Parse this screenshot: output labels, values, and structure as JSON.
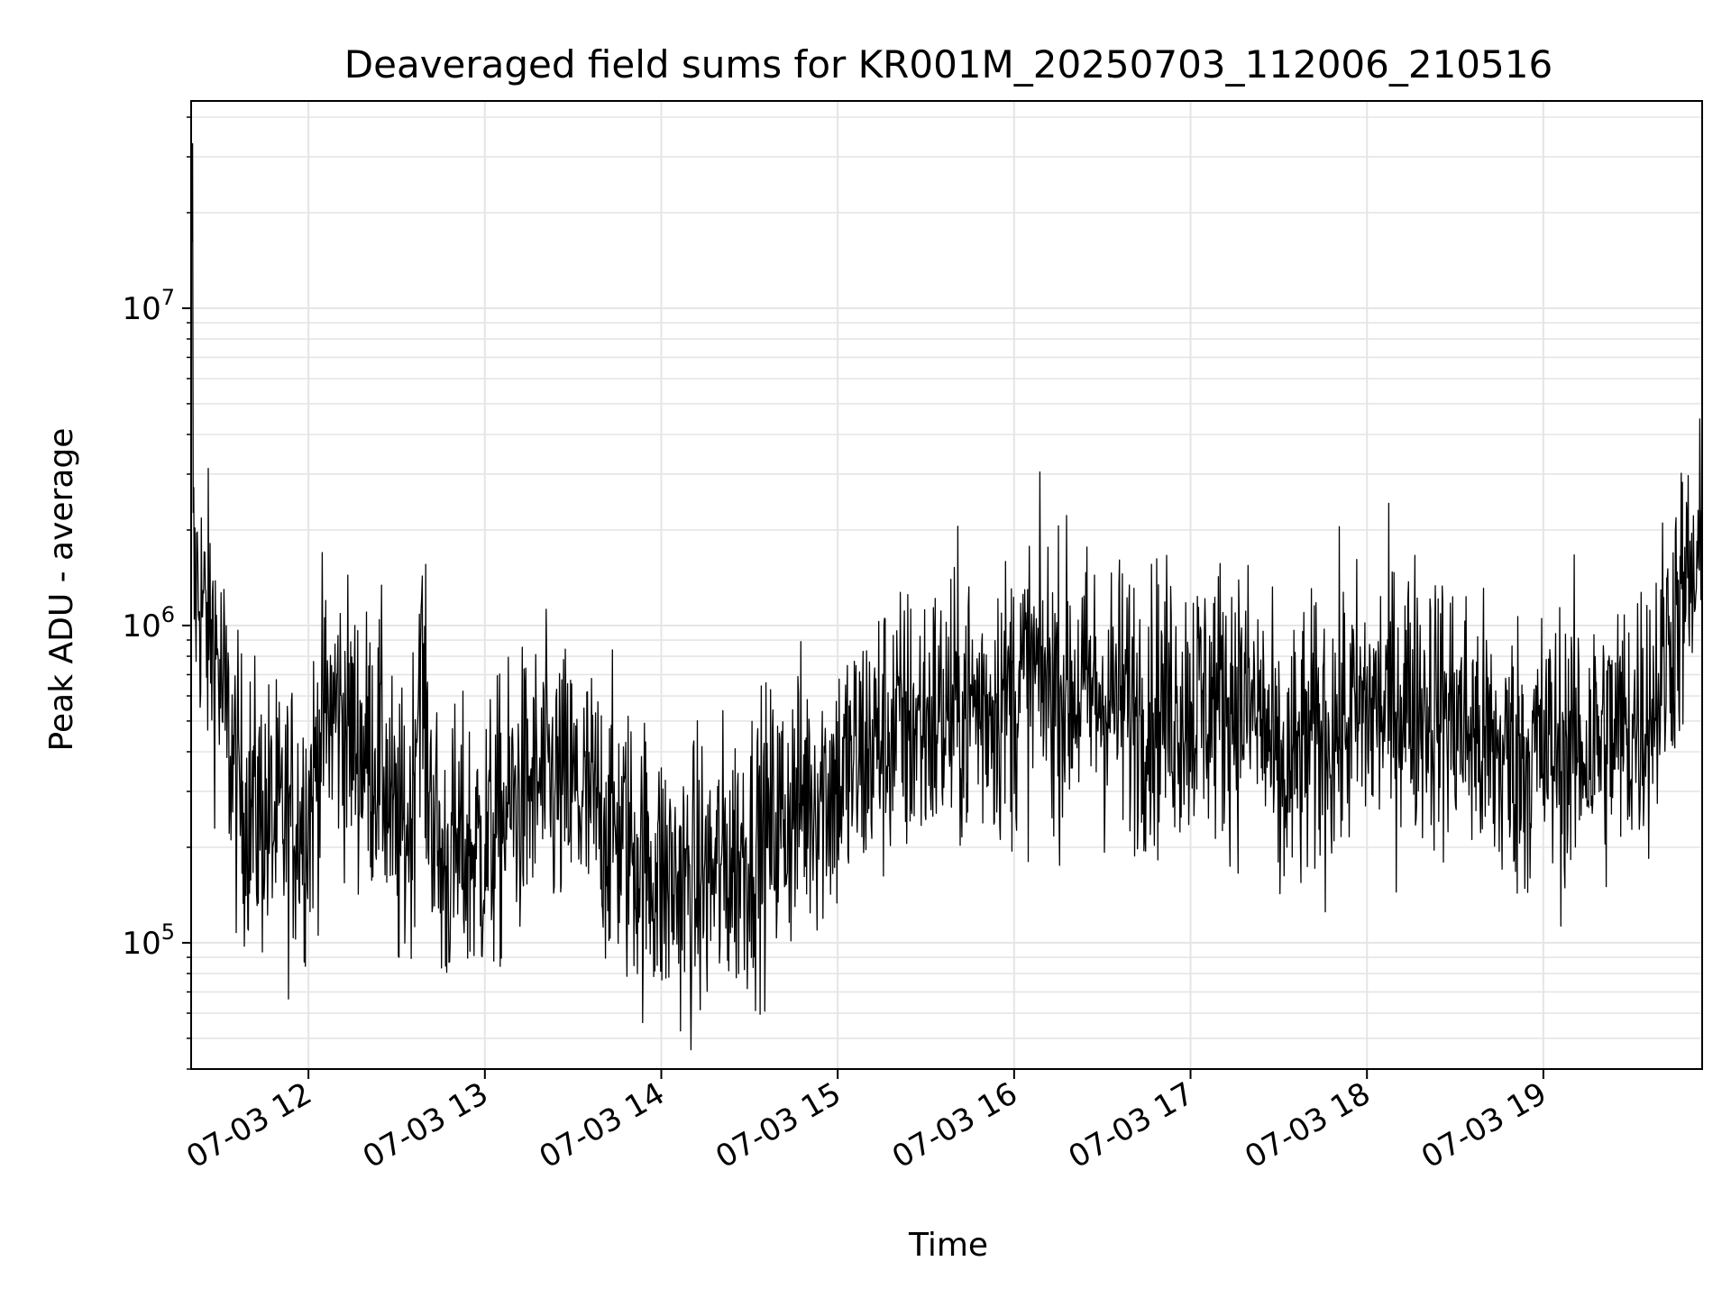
{
  "chart_data": {
    "type": "line",
    "title": "Deaveraged field sums for KR001M_20250703_112006_210516",
    "xlabel": "Time",
    "ylabel": "Peak ADU - average",
    "yscale": "log",
    "ylim": [
      40000,
      45000000
    ],
    "xlim": [
      "2025-07-03 11:20:06",
      "2025-07-03 19:54:00"
    ],
    "grid": true,
    "line_color": "#000000",
    "grid_color": "#e5e5e5",
    "x_ticks": [
      {
        "t": "2025-07-03 12:00",
        "label": "07-03 12"
      },
      {
        "t": "2025-07-03 13:00",
        "label": "07-03 13"
      },
      {
        "t": "2025-07-03 14:00",
        "label": "07-03 14"
      },
      {
        "t": "2025-07-03 15:00",
        "label": "07-03 15"
      },
      {
        "t": "2025-07-03 16:00",
        "label": "07-03 16"
      },
      {
        "t": "2025-07-03 17:00",
        "label": "07-03 17"
      },
      {
        "t": "2025-07-03 18:00",
        "label": "07-03 18"
      },
      {
        "t": "2025-07-03 19:00",
        "label": "07-03 19"
      }
    ],
    "y_ticks": [
      {
        "value": 100000,
        "base": "10",
        "exp": "5"
      },
      {
        "value": 1000000,
        "base": "10",
        "exp": "6"
      },
      {
        "value": 10000000,
        "base": "10",
        "exp": "7"
      }
    ],
    "series": [
      {
        "x": [
          "2025-07-03 11:20",
          "2025-07-03 11:20",
          "2025-07-03 11:21",
          "2025-07-03 11:23",
          "2025-07-03 11:25",
          "2025-07-03 11:28",
          "2025-07-03 11:32",
          "2025-07-03 11:36",
          "2025-07-03 11:38",
          "2025-07-03 11:40",
          "2025-07-03 11:45",
          "2025-07-03 11:50",
          "2025-07-03 11:55",
          "2025-07-03 12:00",
          "2025-07-03 12:05",
          "2025-07-03 12:10",
          "2025-07-03 12:15",
          "2025-07-03 12:20",
          "2025-07-03 12:25",
          "2025-07-03 12:30",
          "2025-07-03 12:35",
          "2025-07-03 12:38",
          "2025-07-03 12:40",
          "2025-07-03 12:45",
          "2025-07-03 12:50",
          "2025-07-03 13:00",
          "2025-07-03 13:10",
          "2025-07-03 13:20",
          "2025-07-03 13:30",
          "2025-07-03 13:40",
          "2025-07-03 13:50",
          "2025-07-03 14:00",
          "2025-07-03 14:10",
          "2025-07-03 14:20",
          "2025-07-03 14:30",
          "2025-07-03 14:40",
          "2025-07-03 14:50",
          "2025-07-03 15:00",
          "2025-07-03 15:15",
          "2025-07-03 15:30",
          "2025-07-03 15:45",
          "2025-07-03 16:00",
          "2025-07-03 16:05",
          "2025-07-03 16:15",
          "2025-07-03 16:30",
          "2025-07-03 16:45",
          "2025-07-03 17:00",
          "2025-07-03 17:15",
          "2025-07-03 17:25",
          "2025-07-03 17:30",
          "2025-07-03 17:40",
          "2025-07-03 17:50",
          "2025-07-03 18:00",
          "2025-07-03 18:15",
          "2025-07-03 18:30",
          "2025-07-03 18:45",
          "2025-07-03 19:00",
          "2025-07-03 19:15",
          "2025-07-03 19:30",
          "2025-07-03 19:38",
          "2025-07-03 19:45",
          "2025-07-03 19:54"
        ],
        "y": [
          1200000,
          33000000,
          1400000,
          1300000,
          1000000,
          900000,
          500000,
          300000,
          280000,
          270000,
          250000,
          230000,
          250000,
          260000,
          500000,
          550000,
          450000,
          400000,
          380000,
          200000,
          250000,
          900000,
          400000,
          170000,
          190000,
          200000,
          280000,
          320000,
          300000,
          250000,
          200000,
          160000,
          150000,
          170000,
          200000,
          240000,
          300000,
          320000,
          450000,
          500000,
          560000,
          600000,
          700000,
          650000,
          600000,
          560000,
          570000,
          600000,
          500000,
          300000,
          420000,
          480000,
          540000,
          600000,
          520000,
          380000,
          400000,
          420000,
          480000,
          600000,
          1100000,
          1500000
        ]
      }
    ]
  }
}
